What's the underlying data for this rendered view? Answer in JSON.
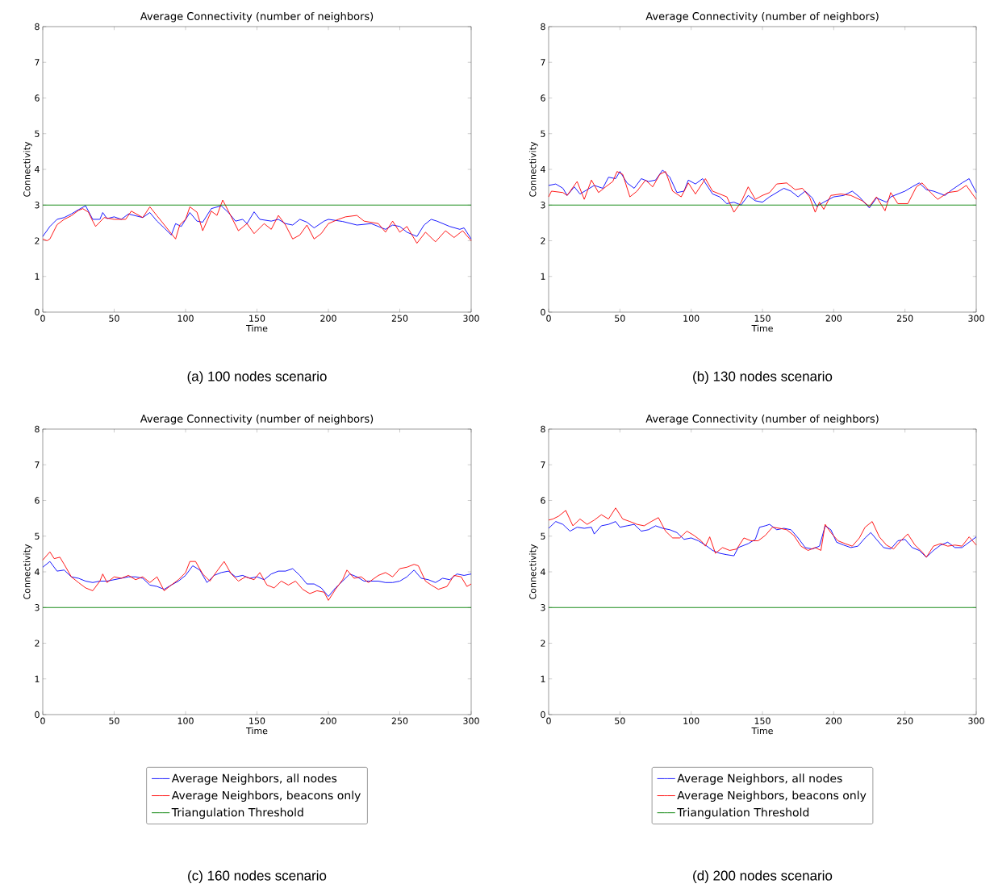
{
  "chart_data": [
    {
      "type": "line",
      "title": "Average Connectivity (number of neighbors)",
      "xlabel": "Time",
      "ylabel": "Connectivity",
      "xlim": [
        0,
        300
      ],
      "ylim": [
        0,
        8
      ],
      "xticks": [
        0,
        50,
        100,
        150,
        200,
        250,
        300
      ],
      "yticks": [
        0,
        1,
        2,
        3,
        4,
        5,
        6,
        7,
        8
      ],
      "legend": false,
      "marker": "none",
      "line_style": "solid",
      "annotations": [
        "(a) 100 nodes scenario"
      ],
      "series": [
        {
          "color": "#0000ff",
          "x": [
            0,
            5,
            10,
            15,
            20,
            25,
            30,
            35,
            40,
            42,
            45,
            50,
            55,
            60,
            65,
            70,
            75,
            80,
            85,
            90,
            93,
            97,
            103,
            108,
            112,
            118,
            125,
            130,
            135,
            140,
            143,
            148,
            152,
            160,
            165,
            170,
            175,
            180,
            185,
            190,
            197,
            200,
            210,
            220,
            230,
            240,
            245,
            250,
            255,
            262,
            267,
            272,
            276,
            285,
            292,
            295,
            300
          ],
          "values": [
            2.12,
            2.4,
            2.6,
            2.65,
            2.75,
            2.87,
            2.98,
            2.6,
            2.6,
            2.79,
            2.62,
            2.67,
            2.6,
            2.75,
            2.7,
            2.65,
            2.79,
            2.55,
            2.36,
            2.16,
            2.48,
            2.4,
            2.79,
            2.55,
            2.52,
            2.9,
            2.98,
            2.79,
            2.55,
            2.6,
            2.48,
            2.81,
            2.6,
            2.55,
            2.6,
            2.48,
            2.44,
            2.6,
            2.52,
            2.36,
            2.55,
            2.6,
            2.54,
            2.44,
            2.48,
            2.32,
            2.44,
            2.4,
            2.24,
            2.12,
            2.44,
            2.6,
            2.55,
            2.4,
            2.32,
            2.36,
            2.05
          ]
        },
        {
          "color": "#ff0000",
          "x": [
            0,
            3,
            5,
            10,
            15,
            20,
            25,
            28,
            32,
            35,
            37,
            43,
            50,
            58,
            62,
            70,
            75,
            80,
            85,
            90,
            93,
            96,
            100,
            103,
            108,
            112,
            118,
            122,
            126,
            130,
            137,
            143,
            148,
            155,
            160,
            165,
            170,
            175,
            180,
            185,
            190,
            195,
            200,
            207,
            212,
            220,
            225,
            235,
            240,
            245,
            250,
            255,
            262,
            268,
            275,
            282,
            288,
            294,
            300
          ],
          "values": [
            2.05,
            2.0,
            2.05,
            2.45,
            2.6,
            2.7,
            2.85,
            2.9,
            2.8,
            2.55,
            2.4,
            2.65,
            2.6,
            2.6,
            2.83,
            2.65,
            2.95,
            2.7,
            2.45,
            2.2,
            2.05,
            2.45,
            2.6,
            2.95,
            2.8,
            2.28,
            2.83,
            2.71,
            3.14,
            2.83,
            2.28,
            2.48,
            2.2,
            2.48,
            2.32,
            2.71,
            2.44,
            2.05,
            2.16,
            2.44,
            2.05,
            2.2,
            2.48,
            2.6,
            2.67,
            2.71,
            2.55,
            2.48,
            2.24,
            2.55,
            2.24,
            2.4,
            1.93,
            2.24,
            1.97,
            2.28,
            2.09,
            2.28,
            2.0
          ]
        },
        {
          "color": "#008000",
          "x": [
            0,
            300
          ],
          "values": [
            3,
            3
          ]
        }
      ]
    },
    {
      "type": "line",
      "title": "Average Connectivity (number of neighbors)",
      "xlabel": "Time",
      "ylabel": "Connectivity",
      "xlim": [
        0,
        300
      ],
      "ylim": [
        0,
        8
      ],
      "xticks": [
        0,
        50,
        100,
        150,
        200,
        250,
        300
      ],
      "yticks": [
        0,
        1,
        2,
        3,
        4,
        5,
        6,
        7,
        8
      ],
      "legend": false,
      "marker": "none",
      "line_style": "solid",
      "annotations": [
        "(b) 130 nodes scenario"
      ],
      "series": [
        {
          "color": "#0000ff",
          "x": [
            0,
            5,
            10,
            13,
            18,
            22,
            27,
            32,
            38,
            42,
            47,
            50,
            55,
            60,
            65,
            70,
            75,
            80,
            85,
            90,
            95,
            98,
            103,
            108,
            115,
            120,
            125,
            130,
            135,
            140,
            145,
            150,
            155,
            160,
            165,
            170,
            175,
            180,
            185,
            188,
            193,
            200,
            207,
            213,
            218,
            225,
            230,
            237,
            240,
            245,
            250,
            255,
            260,
            265,
            270,
            278,
            283,
            290,
            295,
            300
          ],
          "values": [
            3.55,
            3.59,
            3.47,
            3.27,
            3.51,
            3.31,
            3.43,
            3.55,
            3.47,
            3.78,
            3.74,
            3.94,
            3.62,
            3.47,
            3.74,
            3.66,
            3.7,
            3.98,
            3.78,
            3.35,
            3.39,
            3.7,
            3.59,
            3.74,
            3.31,
            3.23,
            3.04,
            3.08,
            3.0,
            3.27,
            3.12,
            3.08,
            3.23,
            3.35,
            3.47,
            3.39,
            3.23,
            3.39,
            3.2,
            2.96,
            3.08,
            3.23,
            3.27,
            3.39,
            3.23,
            2.92,
            3.2,
            3.08,
            3.23,
            3.31,
            3.39,
            3.51,
            3.62,
            3.43,
            3.39,
            3.27,
            3.43,
            3.62,
            3.74,
            3.35
          ]
        },
        {
          "color": "#ff0000",
          "x": [
            0,
            2,
            10,
            13,
            20,
            25,
            30,
            35,
            40,
            45,
            48,
            52,
            57,
            62,
            68,
            73,
            78,
            82,
            87,
            93,
            98,
            103,
            110,
            115,
            120,
            125,
            130,
            135,
            140,
            145,
            150,
            155,
            160,
            167,
            173,
            178,
            183,
            187,
            190,
            193,
            198,
            205,
            212,
            220,
            225,
            230,
            236,
            240,
            245,
            252,
            258,
            262,
            268,
            273,
            280,
            287,
            293,
            300
          ],
          "values": [
            3.23,
            3.39,
            3.35,
            3.27,
            3.66,
            3.16,
            3.7,
            3.35,
            3.51,
            3.66,
            3.94,
            3.86,
            3.23,
            3.39,
            3.7,
            3.51,
            3.86,
            3.94,
            3.39,
            3.23,
            3.62,
            3.31,
            3.74,
            3.39,
            3.31,
            3.23,
            2.8,
            3.08,
            3.51,
            3.16,
            3.27,
            3.35,
            3.59,
            3.62,
            3.43,
            3.47,
            3.23,
            2.8,
            3.08,
            2.88,
            3.27,
            3.31,
            3.27,
            3.12,
            2.96,
            3.23,
            2.84,
            3.35,
            3.04,
            3.04,
            3.51,
            3.62,
            3.35,
            3.16,
            3.35,
            3.39,
            3.55,
            3.16
          ]
        },
        {
          "color": "#008000",
          "x": [
            0,
            300
          ],
          "values": [
            3,
            3
          ]
        }
      ]
    },
    {
      "type": "line",
      "title": "Average Connectivity (number of neighbors)",
      "xlabel": "Time",
      "ylabel": "Connectivity",
      "xlim": [
        0,
        300
      ],
      "ylim": [
        0,
        8
      ],
      "xticks": [
        0,
        50,
        100,
        150,
        200,
        250,
        300
      ],
      "yticks": [
        0,
        1,
        2,
        3,
        4,
        5,
        6,
        7,
        8
      ],
      "legend": "bottom",
      "marker": "none",
      "line_style": "solid",
      "annotations": [
        "(c) 160 nodes scenario"
      ],
      "series": [
        {
          "name": "Average Neighbors, all nodes",
          "color": "#0000ff",
          "x": [
            0,
            5,
            10,
            15,
            20,
            25,
            30,
            35,
            40,
            45,
            50,
            55,
            60,
            65,
            70,
            75,
            80,
            85,
            90,
            95,
            100,
            105,
            110,
            115,
            120,
            125,
            130,
            135,
            140,
            145,
            150,
            155,
            160,
            165,
            170,
            175,
            180,
            185,
            190,
            195,
            200,
            205,
            210,
            215,
            220,
            225,
            230,
            235,
            240,
            245,
            250,
            255,
            260,
            265,
            270,
            275,
            280,
            285,
            290,
            295,
            300
          ],
          "values": [
            4.13,
            4.29,
            4.02,
            4.05,
            3.86,
            3.82,
            3.74,
            3.7,
            3.74,
            3.74,
            3.78,
            3.82,
            3.86,
            3.86,
            3.82,
            3.63,
            3.59,
            3.51,
            3.63,
            3.74,
            3.9,
            4.17,
            4.05,
            3.7,
            3.9,
            3.98,
            4.02,
            3.86,
            3.9,
            3.82,
            3.86,
            3.78,
            3.94,
            4.02,
            4.02,
            4.09,
            3.9,
            3.66,
            3.66,
            3.55,
            3.31,
            3.55,
            3.74,
            3.94,
            3.86,
            3.74,
            3.74,
            3.74,
            3.7,
            3.7,
            3.74,
            3.86,
            4.05,
            3.82,
            3.78,
            3.7,
            3.82,
            3.78,
            3.94,
            3.9,
            3.94
          ]
        },
        {
          "name": "Average Neighbors, beacons only",
          "color": "#ff0000",
          "x": [
            0,
            5,
            8,
            12,
            15,
            20,
            25,
            30,
            35,
            40,
            42,
            45,
            50,
            55,
            60,
            65,
            70,
            75,
            80,
            85,
            90,
            95,
            100,
            103,
            107,
            112,
            117,
            122,
            127,
            132,
            137,
            142,
            148,
            152,
            157,
            162,
            167,
            172,
            177,
            182,
            187,
            192,
            197,
            200,
            205,
            210,
            213,
            218,
            223,
            228,
            235,
            240,
            245,
            250,
            255,
            260,
            263,
            268,
            272,
            277,
            283,
            288,
            293,
            297,
            300
          ],
          "values": [
            4.33,
            4.56,
            4.37,
            4.41,
            4.21,
            3.86,
            3.7,
            3.55,
            3.47,
            3.74,
            3.94,
            3.7,
            3.86,
            3.82,
            3.9,
            3.78,
            3.86,
            3.7,
            3.86,
            3.47,
            3.63,
            3.78,
            3.98,
            4.29,
            4.29,
            3.94,
            3.74,
            4.02,
            4.29,
            3.94,
            3.74,
            3.86,
            3.78,
            3.98,
            3.63,
            3.55,
            3.74,
            3.63,
            3.74,
            3.51,
            3.39,
            3.47,
            3.43,
            3.2,
            3.51,
            3.78,
            4.05,
            3.82,
            3.86,
            3.7,
            3.9,
            3.98,
            3.86,
            4.09,
            4.13,
            4.21,
            4.17,
            3.74,
            3.63,
            3.51,
            3.59,
            3.9,
            3.86,
            3.59,
            3.66
          ]
        },
        {
          "name": "Triangulation Threshold",
          "color": "#008000",
          "x": [
            0,
            300
          ],
          "values": [
            3,
            3
          ]
        }
      ]
    },
    {
      "type": "line",
      "title": "Average Connectivity (number of neighbors)",
      "xlabel": "Time",
      "ylabel": "Connectivity",
      "xlim": [
        0,
        300
      ],
      "ylim": [
        0,
        8
      ],
      "xticks": [
        0,
        50,
        100,
        150,
        200,
        250,
        300
      ],
      "yticks": [
        0,
        1,
        2,
        3,
        4,
        5,
        6,
        7,
        8
      ],
      "legend": "bottom",
      "marker": "none",
      "line_style": "solid",
      "annotations": [
        "(d) 200 nodes scenario"
      ],
      "series": [
        {
          "name": "Average Neighbors, all nodes",
          "color": "#0000ff",
          "x": [
            0,
            5,
            10,
            15,
            20,
            25,
            30,
            32,
            37,
            42,
            47,
            50,
            55,
            60,
            65,
            70,
            75,
            80,
            85,
            90,
            95,
            100,
            105,
            110,
            115,
            120,
            125,
            130,
            133,
            140,
            145,
            148,
            152,
            155,
            160,
            165,
            170,
            175,
            180,
            185,
            190,
            194,
            198,
            202,
            207,
            212,
            217,
            222,
            226,
            230,
            235,
            240,
            245,
            250,
            255,
            260,
            265,
            270,
            275,
            280,
            285,
            290,
            295,
            300
          ],
          "values": [
            5.22,
            5.41,
            5.33,
            5.14,
            5.25,
            5.22,
            5.25,
            5.06,
            5.29,
            5.33,
            5.41,
            5.25,
            5.29,
            5.33,
            5.14,
            5.18,
            5.29,
            5.22,
            5.18,
            5.1,
            4.91,
            4.95,
            4.87,
            4.75,
            4.6,
            4.52,
            4.48,
            4.45,
            4.68,
            4.79,
            4.91,
            5.25,
            5.29,
            5.33,
            5.18,
            5.22,
            5.18,
            4.95,
            4.68,
            4.64,
            4.72,
            5.29,
            5.18,
            4.83,
            4.75,
            4.68,
            4.72,
            4.95,
            5.1,
            4.91,
            4.68,
            4.64,
            4.87,
            4.91,
            4.68,
            4.6,
            4.41,
            4.6,
            4.75,
            4.83,
            4.68,
            4.68,
            4.83,
            4.98
          ]
        },
        {
          "name": "Average Neighbors, beacons only",
          "color": "#ff0000",
          "x": [
            0,
            3,
            7,
            12,
            17,
            22,
            27,
            32,
            37,
            42,
            47,
            52,
            57,
            62,
            67,
            72,
            77,
            82,
            87,
            92,
            97,
            102,
            107,
            110,
            113,
            117,
            122,
            127,
            132,
            137,
            142,
            147,
            152,
            157,
            162,
            167,
            172,
            177,
            182,
            187,
            191,
            194,
            198,
            203,
            208,
            213,
            218,
            222,
            227,
            232,
            237,
            242,
            247,
            252,
            257,
            262,
            265,
            270,
            275,
            280,
            285,
            290,
            295,
            300
          ],
          "values": [
            5.45,
            5.48,
            5.56,
            5.72,
            5.29,
            5.48,
            5.33,
            5.45,
            5.6,
            5.48,
            5.79,
            5.48,
            5.41,
            5.33,
            5.29,
            5.41,
            5.52,
            5.14,
            4.95,
            4.95,
            5.14,
            5.02,
            4.87,
            4.72,
            4.98,
            4.52,
            4.68,
            4.6,
            4.64,
            4.95,
            4.87,
            4.87,
            5.02,
            5.25,
            5.22,
            5.18,
            5.02,
            4.72,
            4.6,
            4.68,
            4.6,
            5.33,
            5.1,
            4.87,
            4.79,
            4.72,
            4.95,
            5.25,
            5.41,
            4.98,
            4.75,
            4.64,
            4.87,
            5.06,
            4.75,
            4.56,
            4.41,
            4.72,
            4.79,
            4.72,
            4.75,
            4.72,
            4.98,
            4.75
          ]
        },
        {
          "name": "Triangulation Threshold",
          "color": "#008000",
          "x": [
            0,
            300
          ],
          "values": [
            3,
            3
          ]
        }
      ]
    }
  ]
}
